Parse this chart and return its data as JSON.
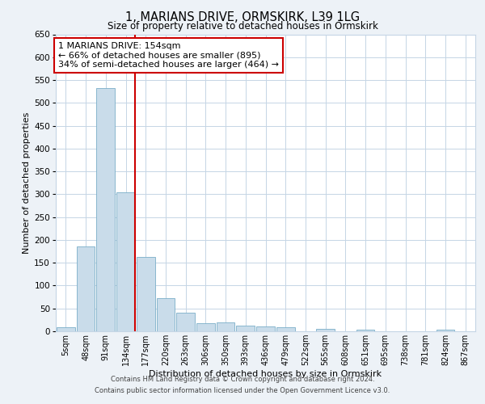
{
  "title": "1, MARIANS DRIVE, ORMSKIRK, L39 1LG",
  "subtitle": "Size of property relative to detached houses in Ormskirk",
  "xlabel": "Distribution of detached houses by size in Ormskirk",
  "ylabel": "Number of detached properties",
  "bar_labels": [
    "5sqm",
    "48sqm",
    "91sqm",
    "134sqm",
    "177sqm",
    "220sqm",
    "263sqm",
    "306sqm",
    "350sqm",
    "393sqm",
    "436sqm",
    "479sqm",
    "522sqm",
    "565sqm",
    "608sqm",
    "651sqm",
    "695sqm",
    "738sqm",
    "781sqm",
    "824sqm",
    "867sqm"
  ],
  "bar_values": [
    8,
    185,
    533,
    305,
    163,
    73,
    41,
    17,
    20,
    12,
    10,
    8,
    0,
    5,
    0,
    3,
    0,
    0,
    0,
    4,
    0
  ],
  "bar_color": "#c9dcea",
  "bar_edge_color": "#7aaec8",
  "ylim": [
    0,
    650
  ],
  "yticks": [
    0,
    50,
    100,
    150,
    200,
    250,
    300,
    350,
    400,
    450,
    500,
    550,
    600,
    650
  ],
  "vline_x_index": 3,
  "vline_color": "#cc0000",
  "annotation_title": "1 MARIANS DRIVE: 154sqm",
  "annotation_line1": "← 66% of detached houses are smaller (895)",
  "annotation_line2": "34% of semi-detached houses are larger (464) →",
  "annotation_box_color": "#cc0000",
  "footer_line1": "Contains HM Land Registry data © Crown copyright and database right 2024.",
  "footer_line2": "Contains public sector information licensed under the Open Government Licence v3.0.",
  "bg_color": "#edf2f7",
  "plot_bg_color": "#ffffff",
  "grid_color": "#c5d5e5"
}
